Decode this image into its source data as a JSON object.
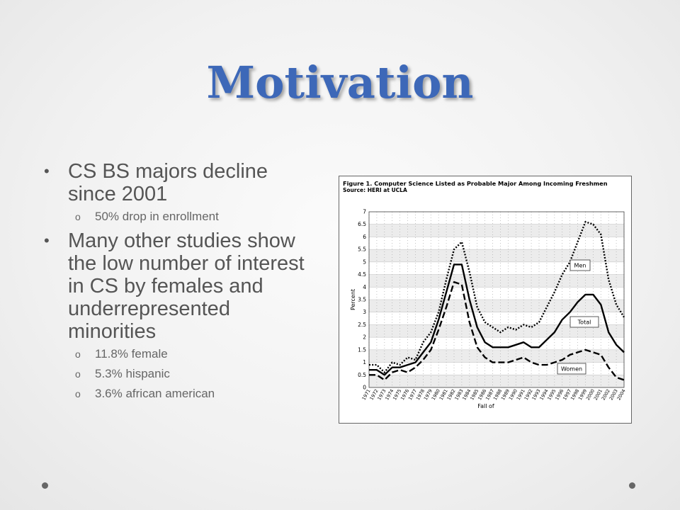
{
  "slide": {
    "title": "Motivation",
    "bullets": [
      {
        "text": "CS BS majors decline since 2001",
        "sub": [
          "50% drop in enrollment"
        ]
      },
      {
        "text": "Many other studies show the low number of interest in CS by females and underrepresented minorities",
        "sub": [
          "11.8% female",
          "5.3% hispanic",
          "3.6% african american"
        ]
      }
    ],
    "bullet_glyph": "•",
    "sub_bullet_glyph": "o"
  },
  "chart_data": {
    "type": "line",
    "title": "Figure 1. Computer Science Listed as Probable Major Among Incoming Freshmen",
    "subtitle": "Source: HERI at UCLA",
    "xlabel": "Fall of",
    "ylabel": "Percent",
    "ylim": [
      0,
      7
    ],
    "y_ticks": [
      "0",
      "0.5",
      "1",
      "1.5",
      "2",
      "2.5",
      "3",
      "3.5",
      "4",
      "4.5",
      "5",
      "5.5",
      "6",
      "6.5",
      "7"
    ],
    "x": [
      "1971",
      "1972",
      "1973",
      "1974",
      "1975",
      "1976",
      "1977",
      "1978",
      "1979",
      "1980",
      "1981",
      "1982",
      "1983",
      "1984",
      "1985",
      "1986",
      "1987",
      "1988",
      "1989",
      "1990",
      "1991",
      "1992",
      "1993",
      "1994",
      "1995",
      "1996",
      "1997",
      "1998",
      "1999",
      "2000",
      "2001",
      "2002",
      "2003",
      "2004"
    ],
    "series": [
      {
        "name": "Men",
        "style": "dotted",
        "values": [
          0.9,
          0.9,
          0.6,
          1.0,
          0.9,
          1.2,
          1.1,
          1.8,
          2.2,
          3.0,
          4.3,
          5.5,
          5.8,
          4.6,
          3.2,
          2.6,
          2.4,
          2.2,
          2.4,
          2.3,
          2.5,
          2.4,
          2.6,
          3.2,
          3.8,
          4.5,
          5.0,
          5.8,
          6.6,
          6.5,
          6.1,
          4.3,
          3.3,
          2.8
        ]
      },
      {
        "name": "Total",
        "style": "solid",
        "values": [
          0.7,
          0.7,
          0.5,
          0.8,
          0.8,
          0.9,
          1.0,
          1.4,
          1.8,
          2.7,
          3.8,
          4.9,
          4.9,
          3.5,
          2.4,
          1.8,
          1.6,
          1.6,
          1.6,
          1.7,
          1.8,
          1.6,
          1.6,
          1.9,
          2.2,
          2.7,
          3.0,
          3.4,
          3.7,
          3.7,
          3.3,
          2.2,
          1.7,
          1.4
        ]
      },
      {
        "name": "Women",
        "style": "dashed",
        "values": [
          0.5,
          0.5,
          0.3,
          0.6,
          0.7,
          0.6,
          0.8,
          1.1,
          1.5,
          2.3,
          3.2,
          4.2,
          4.1,
          2.6,
          1.6,
          1.2,
          1.0,
          1.0,
          1.0,
          1.1,
          1.2,
          1.0,
          0.9,
          0.9,
          1.0,
          1.1,
          1.3,
          1.4,
          1.5,
          1.4,
          1.3,
          0.8,
          0.4,
          0.3
        ]
      }
    ],
    "legend_labels": [
      "Men",
      "Total",
      "Women"
    ],
    "grid": true
  }
}
